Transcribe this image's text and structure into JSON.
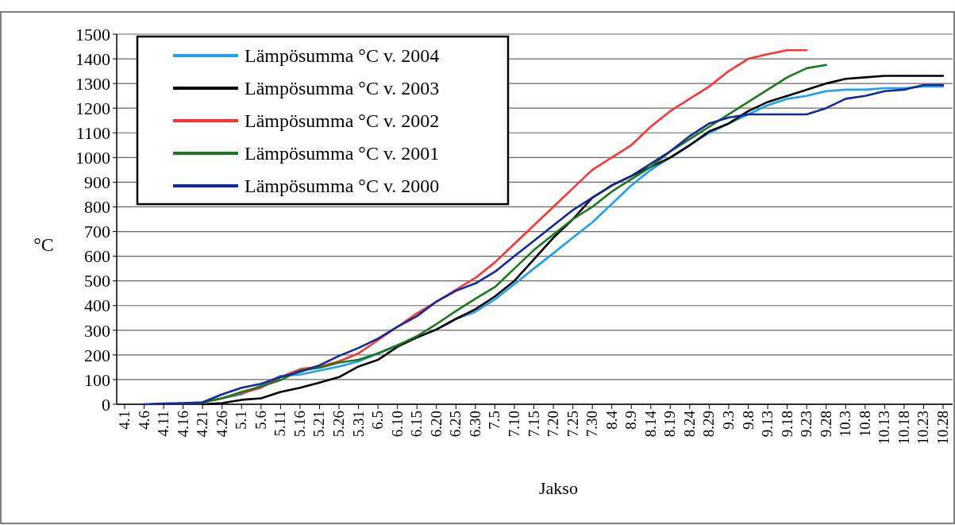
{
  "chart_data": {
    "type": "line",
    "xlabel": "Jakso",
    "ylabel": "°C",
    "categories": [
      "4.1",
      "4.6",
      "4.11",
      "4.16",
      "4.21",
      "4.26",
      "5.1",
      "5.6",
      "5.11",
      "5.16",
      "5.21",
      "5.26",
      "5.31",
      "6.5",
      "6.10",
      "6.15",
      "6.20",
      "6.25",
      "6.30",
      "7.5",
      "7.10",
      "7.15",
      "7.20",
      "7.25",
      "7.30",
      "8.4",
      "8.9",
      "8.14",
      "8.19",
      "8.24",
      "8.29",
      "9.3",
      "9.8",
      "9.13",
      "9.18",
      "9.23",
      "9.28",
      "10.3",
      "10.8",
      "10.13",
      "10.18",
      "10.23",
      "10.28"
    ],
    "ylim": [
      0,
      1500
    ],
    "yticks": [
      0,
      100,
      200,
      300,
      400,
      500,
      600,
      700,
      800,
      900,
      1000,
      1100,
      1200,
      1300,
      1400,
      1500
    ],
    "grid": "y",
    "legend": "top left",
    "series": [
      {
        "name": "Lämpösumma °C v. 2004",
        "color": "#1ea0f0",
        "values": [
          null,
          null,
          null,
          null,
          8,
          24,
          40,
          77,
          115,
          120,
          137,
          153,
          174,
          206,
          239,
          271,
          303,
          346,
          375,
          425,
          487,
          550,
          612,
          675,
          737,
          812,
          887,
          950,
          1000,
          1050,
          1100,
          1138,
          1175,
          1212,
          1238,
          1250,
          1269,
          1275,
          1275,
          1281,
          1281,
          1288,
          1288
        ]
      },
      {
        "name": "Lämpösumma °C v. 2003",
        "color": "#000000",
        "values": [
          null,
          null,
          null,
          null,
          0,
          5,
          18,
          24,
          50,
          67,
          88,
          110,
          153,
          180,
          233,
          271,
          303,
          346,
          385,
          437,
          500,
          587,
          675,
          750,
          837,
          887,
          925,
          962,
          1000,
          1050,
          1106,
          1138,
          1188,
          1225,
          1250,
          1275,
          1300,
          1319,
          1325,
          1331,
          1331,
          1331,
          1331
        ]
      },
      {
        "name": "Lämpösumma °C v. 2002",
        "color": "#ff3333",
        "values": [
          null,
          null,
          null,
          null,
          8,
          24,
          45,
          67,
          110,
          142,
          153,
          174,
          206,
          260,
          314,
          368,
          416,
          464,
          512,
          575,
          650,
          725,
          800,
          875,
          950,
          1000,
          1050,
          1125,
          1188,
          1238,
          1288,
          1350,
          1400,
          1419,
          1435,
          1435,
          null,
          null,
          null,
          null,
          null,
          null,
          null
        ]
      },
      {
        "name": "Lämpösumma °C v. 2001",
        "color": "#1a7a1a",
        "values": [
          null,
          null,
          null,
          null,
          8,
          24,
          50,
          72,
          98,
          137,
          148,
          169,
          180,
          206,
          239,
          276,
          325,
          378,
          428,
          475,
          550,
          625,
          688,
          750,
          800,
          862,
          912,
          962,
          1025,
          1075,
          1125,
          1175,
          1225,
          1275,
          1325,
          1362,
          1375,
          null,
          null,
          null,
          null,
          null,
          null
        ]
      },
      {
        "name": "Lämpösumma °C v. 2000",
        "color": "#1028a0",
        "values": [
          null,
          0,
          3,
          5,
          8,
          40,
          67,
          83,
          110,
          131,
          158,
          196,
          228,
          266,
          314,
          357,
          416,
          460,
          490,
          537,
          600,
          662,
          725,
          787,
          837,
          887,
          925,
          975,
          1025,
          1087,
          1138,
          1162,
          1175,
          1175,
          1175,
          1175,
          1200,
          1238,
          1250,
          1269,
          1275,
          1294,
          1294
        ]
      }
    ]
  }
}
